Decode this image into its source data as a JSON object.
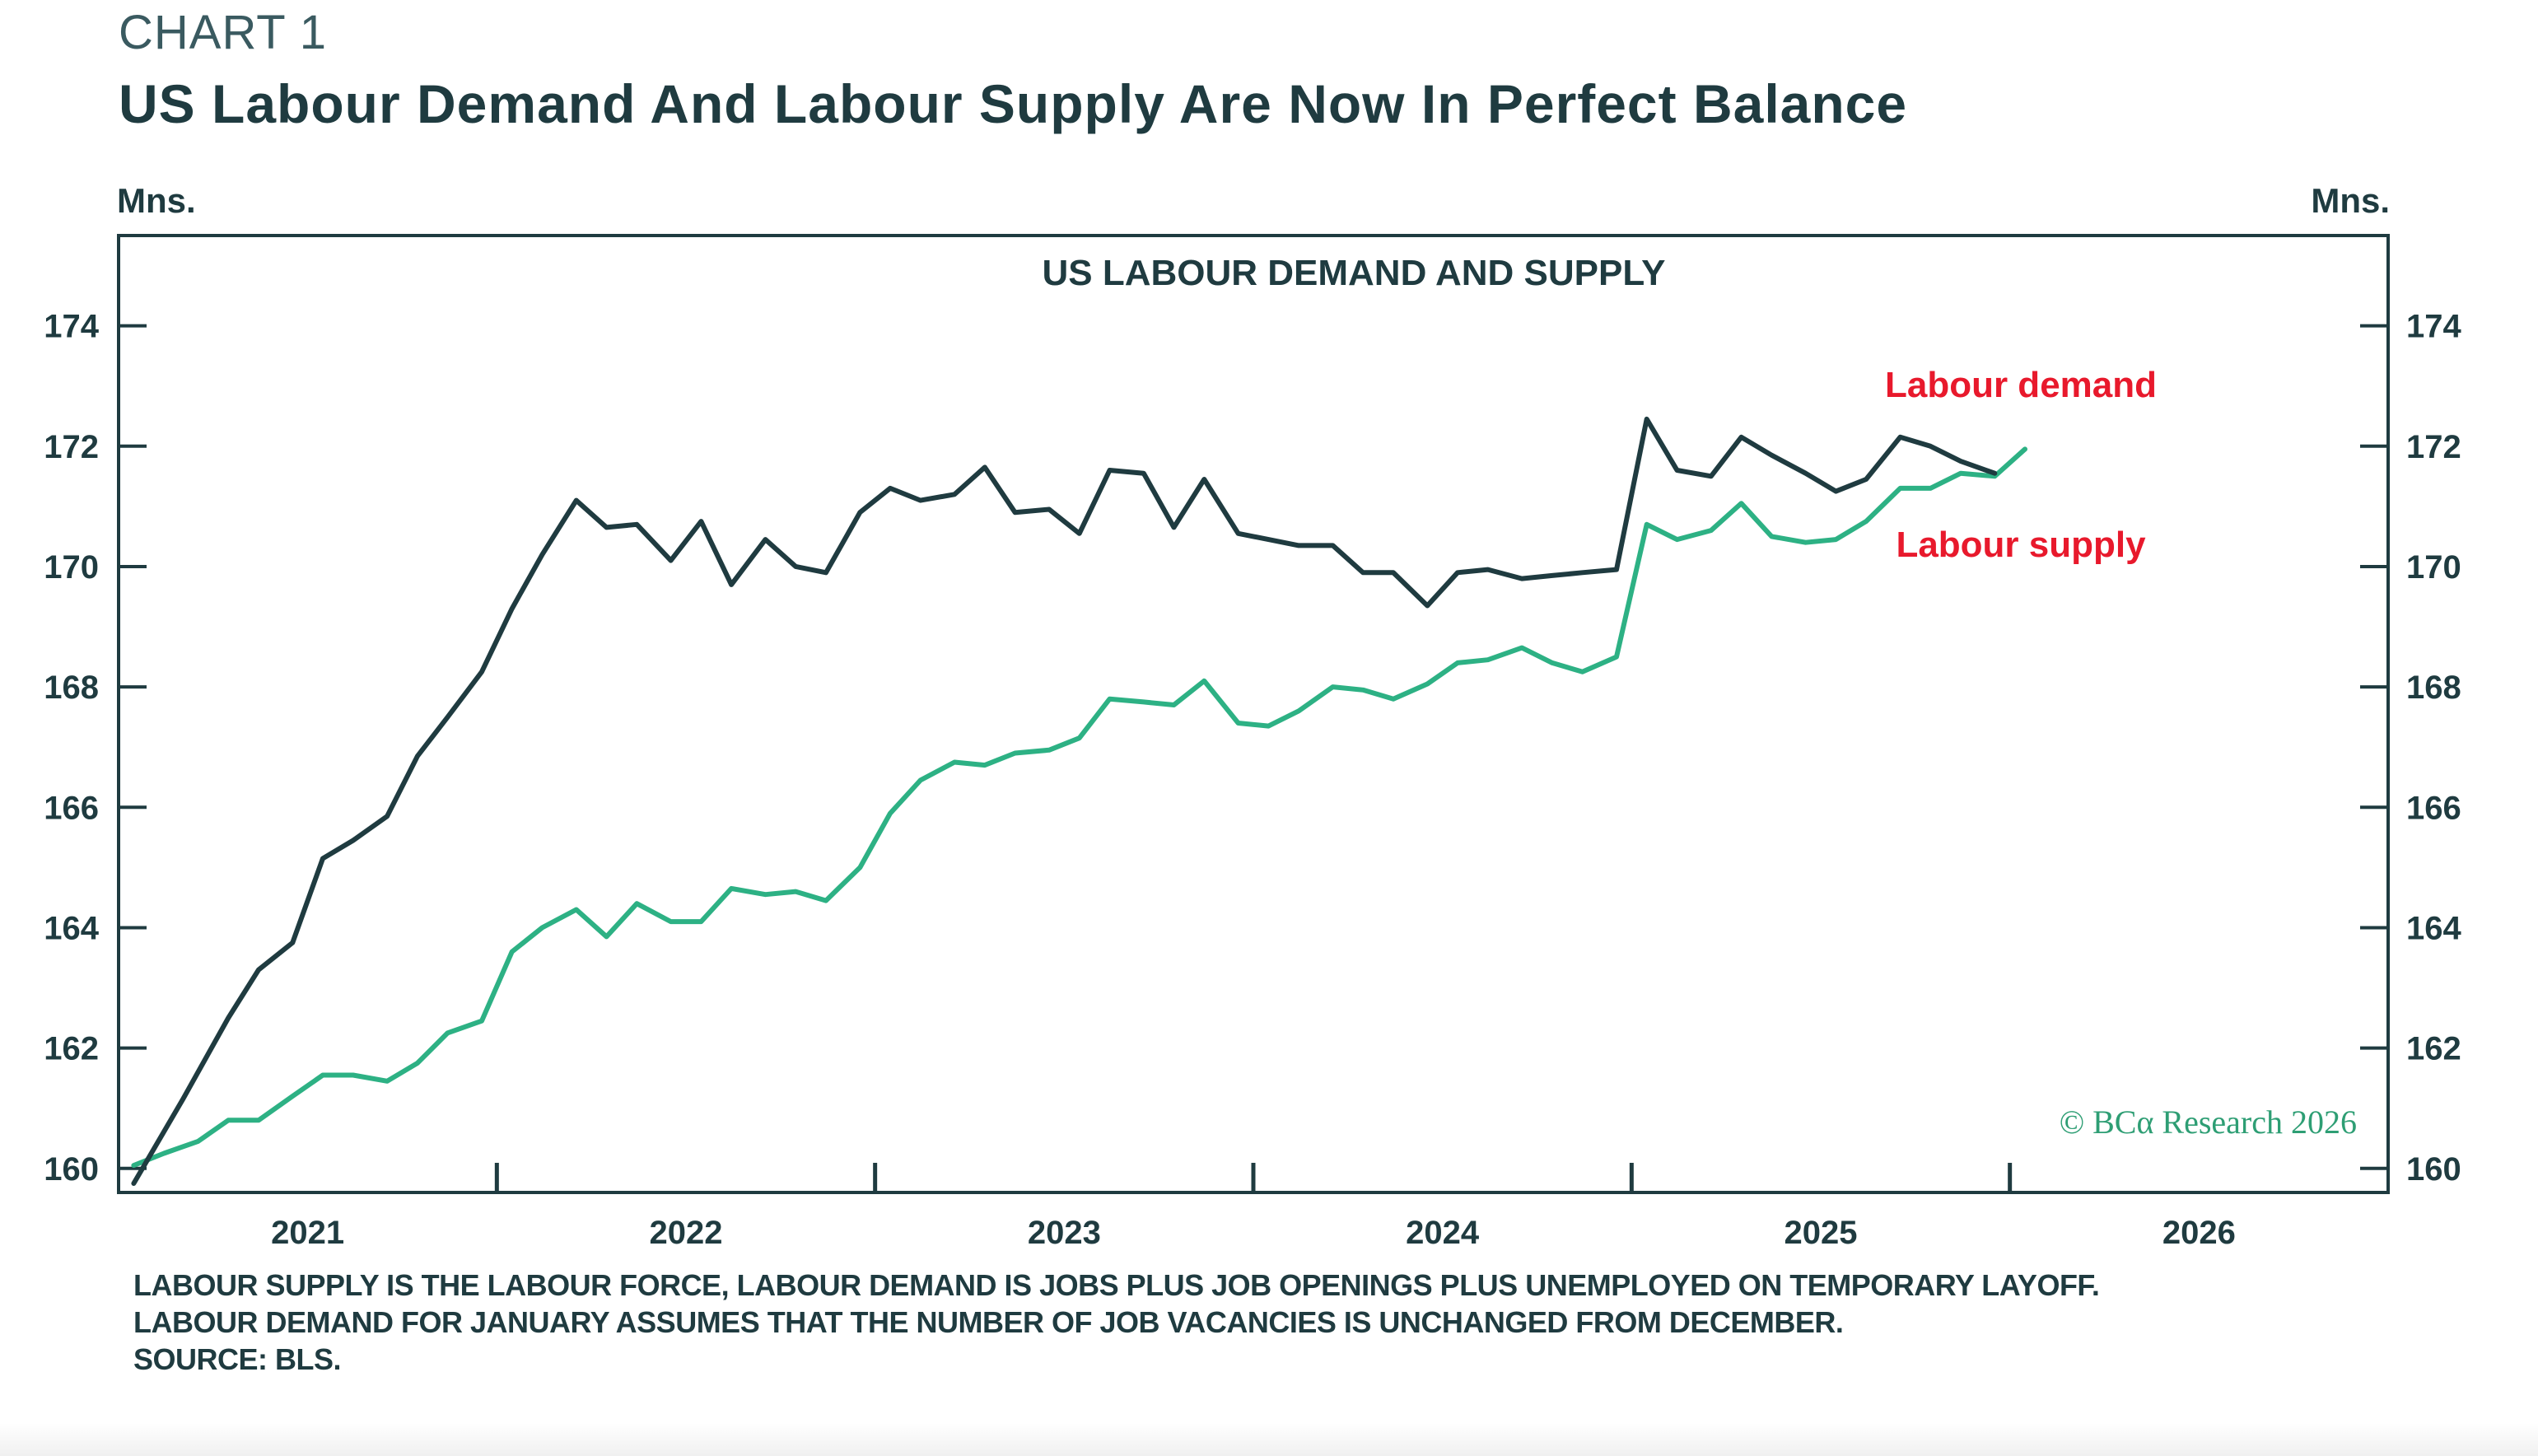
{
  "header": {
    "chart_label": "CHART 1",
    "title": "US Labour Demand And Labour Supply Are Now In Perfect Balance"
  },
  "chart_data": {
    "type": "line",
    "title": "US LABOUR DEMAND AND SUPPLY",
    "ylabel_left": "Mns.",
    "ylabel_right": "Mns.",
    "ylim": [
      159.6,
      175.5
    ],
    "yticks": [
      160,
      162,
      164,
      166,
      168,
      170,
      172,
      174
    ],
    "xlim": [
      2020.5,
      2026.5
    ],
    "xticks_major": [
      2021,
      2022,
      2023,
      2024,
      2025,
      2026
    ],
    "xtick_labels": [
      "2021",
      "2022",
      "2023",
      "2024",
      "2025",
      "2026"
    ],
    "colors": {
      "demand": "#1f3b40",
      "supply": "#2db184",
      "label": "#e8192c"
    },
    "series": [
      {
        "name": "Labour demand",
        "x": [
          2020.54,
          2020.67,
          2020.79,
          2020.87,
          2020.96,
          2021.04,
          2021.12,
          2021.21,
          2021.29,
          2021.37,
          2021.46,
          2021.54,
          2021.62,
          2021.71,
          2021.79,
          2021.87,
          2021.96,
          2022.04,
          2022.12,
          2022.21,
          2022.29,
          2022.37,
          2022.46,
          2022.54,
          2022.62,
          2022.71,
          2022.79,
          2022.87,
          2022.96,
          2023.04,
          2023.12,
          2023.21,
          2023.29,
          2023.37,
          2023.46,
          2023.54,
          2023.62,
          2023.71,
          2023.79,
          2023.87,
          2023.96,
          2024.04,
          2024.12,
          2024.21,
          2024.29,
          2024.37,
          2024.46,
          2024.54,
          2024.62,
          2024.71,
          2024.79,
          2024.87,
          2024.96,
          2025.04,
          2025.12,
          2025.21,
          2025.29,
          2025.37,
          2025.46
        ],
        "values": [
          159.75,
          161.15,
          162.5,
          163.3,
          163.75,
          165.15,
          165.45,
          165.85,
          166.85,
          167.5,
          168.25,
          169.3,
          170.2,
          171.1,
          170.65,
          170.7,
          170.1,
          170.75,
          169.7,
          170.45,
          170.0,
          169.9,
          170.9,
          171.3,
          171.1,
          171.2,
          171.65,
          170.9,
          170.95,
          170.55,
          171.6,
          171.55,
          170.65,
          171.45,
          170.55,
          170.45,
          170.35,
          170.35,
          169.9,
          169.9,
          169.35,
          169.9,
          169.95,
          169.8,
          169.85,
          169.9,
          169.95,
          172.45,
          171.6,
          171.5,
          172.15,
          171.85,
          171.55,
          171.25,
          171.45,
          172.15,
          172.0,
          171.75,
          171.55
        ]
      },
      {
        "name": "Labour supply",
        "x": [
          2020.54,
          2020.62,
          2020.71,
          2020.79,
          2020.87,
          2020.96,
          2021.04,
          2021.12,
          2021.21,
          2021.29,
          2021.37,
          2021.46,
          2021.54,
          2021.62,
          2021.71,
          2021.79,
          2021.87,
          2021.96,
          2022.04,
          2022.12,
          2022.21,
          2022.29,
          2022.37,
          2022.46,
          2022.54,
          2022.62,
          2022.71,
          2022.79,
          2022.87,
          2022.96,
          2023.04,
          2023.12,
          2023.21,
          2023.29,
          2023.37,
          2023.46,
          2023.54,
          2023.62,
          2023.71,
          2023.79,
          2023.87,
          2023.96,
          2024.04,
          2024.12,
          2024.21,
          2024.29,
          2024.37,
          2024.46,
          2024.54,
          2024.62,
          2024.71,
          2024.79,
          2024.87,
          2024.96,
          2025.04,
          2025.12,
          2025.21,
          2025.29,
          2025.37,
          2025.46,
          2025.54
        ],
        "values": [
          160.05,
          160.25,
          160.45,
          160.8,
          160.8,
          161.2,
          161.55,
          161.55,
          161.45,
          161.75,
          162.25,
          162.45,
          163.6,
          164.0,
          164.3,
          163.85,
          164.4,
          164.1,
          164.1,
          164.65,
          164.55,
          164.6,
          164.45,
          165.0,
          165.9,
          166.45,
          166.75,
          166.7,
          166.9,
          166.95,
          167.15,
          167.8,
          167.75,
          167.7,
          168.1,
          167.4,
          167.35,
          167.6,
          168.0,
          167.95,
          167.8,
          168.05,
          168.4,
          168.45,
          168.65,
          168.4,
          168.25,
          168.5,
          170.7,
          170.45,
          170.6,
          171.05,
          170.5,
          170.4,
          170.45,
          170.75,
          171.3,
          171.3,
          171.55,
          171.5,
          171.95
        ]
      }
    ],
    "annotations": {
      "demand_label": "Labour demand",
      "supply_label": "Labour supply",
      "watermark": "© BCα Research 2026"
    }
  },
  "footnotes": {
    "line1": "LABOUR SUPPLY IS THE LABOUR FORCE, LABOUR DEMAND IS JOBS PLUS JOB OPENINGS PLUS UNEMPLOYED ON TEMPORARY LAYOFF.",
    "line2": "LABOUR DEMAND FOR JANUARY ASSUMES THAT THE NUMBER OF JOB VACANCIES IS UNCHANGED FROM DECEMBER.",
    "line3": "SOURCE: BLS."
  }
}
